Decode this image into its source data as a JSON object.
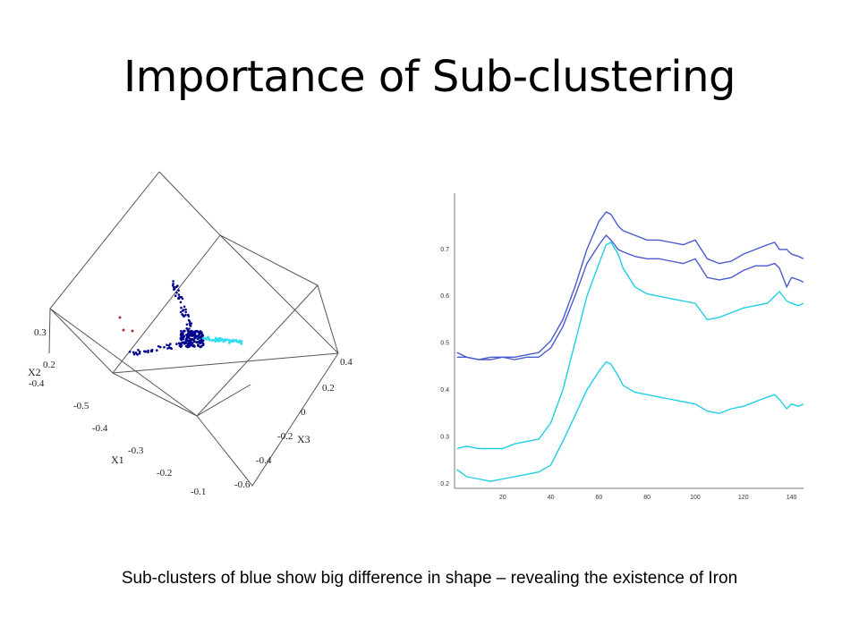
{
  "slide": {
    "title": "Importance of Sub-clustering",
    "caption": "Sub-clusters of blue show big difference in shape – revealing the existence of Iron"
  },
  "chart_data": [
    {
      "type": "scatter",
      "projection": "3d",
      "xlabel": "X1",
      "ylabel": "X2",
      "zlabel": "X3",
      "axes": {
        "X1": {
          "ticks": [
            "-0.5",
            "-0.4",
            "-0.3",
            "-0.2",
            "-0.1"
          ]
        },
        "X2": {
          "ticks": [
            "0.3",
            "0.2",
            "-0.4"
          ]
        },
        "X3": {
          "ticks": [
            "0.4",
            "0.2",
            "0",
            "-0.2",
            "-0.4",
            "-0.6"
          ]
        }
      },
      "series": [
        {
          "color": "#00008b",
          "description_count": "approx 200 points"
        },
        {
          "color": "#33ddee"
        },
        {
          "color": "#b03030"
        }
      ],
      "colors": {
        "dark_blue": "#00008b",
        "cyan": "#33ddee",
        "red": "#b03030",
        "box": "#555555"
      }
    },
    {
      "type": "line",
      "xlim": [
        0,
        145
      ],
      "ylim": [
        0.19,
        0.82
      ],
      "xticks": [
        20,
        40,
        60,
        80,
        100,
        120,
        140
      ],
      "yticks": [
        0.2,
        0.3,
        0.4,
        0.5,
        0.6,
        0.7
      ],
      "series": [
        {
          "color": "#4a5bd1",
          "x": [
            1,
            5,
            10,
            15,
            20,
            25,
            30,
            35,
            40,
            45,
            50,
            55,
            60,
            63,
            65,
            68,
            70,
            75,
            80,
            85,
            90,
            95,
            100,
            105,
            110,
            115,
            120,
            125,
            130,
            133,
            135,
            138,
            140,
            143,
            145
          ],
          "y": [
            0.47,
            0.47,
            0.465,
            0.47,
            0.47,
            0.47,
            0.475,
            0.48,
            0.505,
            0.55,
            0.62,
            0.7,
            0.76,
            0.78,
            0.775,
            0.75,
            0.74,
            0.73,
            0.72,
            0.72,
            0.715,
            0.71,
            0.72,
            0.68,
            0.67,
            0.675,
            0.69,
            0.7,
            0.71,
            0.715,
            0.7,
            0.7,
            0.69,
            0.685,
            0.68
          ]
        },
        {
          "color": "#4a5bd1",
          "x": [
            1,
            5,
            10,
            15,
            20,
            25,
            30,
            35,
            40,
            45,
            50,
            55,
            60,
            63,
            65,
            68,
            70,
            75,
            80,
            85,
            90,
            95,
            100,
            105,
            110,
            115,
            120,
            125,
            130,
            133,
            135,
            138,
            140,
            143,
            145
          ],
          "y": [
            0.48,
            0.47,
            0.465,
            0.465,
            0.47,
            0.465,
            0.47,
            0.47,
            0.49,
            0.535,
            0.6,
            0.67,
            0.71,
            0.73,
            0.72,
            0.7,
            0.695,
            0.685,
            0.68,
            0.68,
            0.675,
            0.67,
            0.68,
            0.64,
            0.635,
            0.64,
            0.655,
            0.665,
            0.665,
            0.67,
            0.66,
            0.62,
            0.64,
            0.635,
            0.63
          ]
        },
        {
          "color": "#1ecfe6",
          "x": [
            1,
            5,
            10,
            15,
            20,
            25,
            30,
            35,
            40,
            45,
            50,
            55,
            60,
            63,
            65,
            68,
            70,
            75,
            80,
            85,
            90,
            95,
            100,
            105,
            110,
            115,
            120,
            125,
            130,
            133,
            135,
            138,
            140,
            143,
            145
          ],
          "y": [
            0.275,
            0.28,
            0.275,
            0.275,
            0.275,
            0.285,
            0.29,
            0.295,
            0.33,
            0.4,
            0.5,
            0.6,
            0.67,
            0.71,
            0.715,
            0.69,
            0.66,
            0.62,
            0.605,
            0.6,
            0.595,
            0.59,
            0.585,
            0.55,
            0.555,
            0.565,
            0.575,
            0.58,
            0.585,
            0.6,
            0.61,
            0.59,
            0.585,
            0.58,
            0.585
          ]
        },
        {
          "color": "#1ecfe6",
          "x": [
            1,
            5,
            10,
            15,
            20,
            25,
            30,
            35,
            40,
            45,
            50,
            55,
            60,
            63,
            65,
            68,
            70,
            75,
            80,
            85,
            90,
            95,
            100,
            105,
            110,
            115,
            120,
            125,
            130,
            133,
            135,
            138,
            140,
            143,
            145
          ],
          "y": [
            0.23,
            0.215,
            0.21,
            0.205,
            0.21,
            0.215,
            0.22,
            0.225,
            0.24,
            0.29,
            0.345,
            0.4,
            0.44,
            0.46,
            0.455,
            0.43,
            0.41,
            0.395,
            0.39,
            0.385,
            0.38,
            0.375,
            0.37,
            0.355,
            0.35,
            0.36,
            0.365,
            0.375,
            0.385,
            0.39,
            0.38,
            0.36,
            0.37,
            0.365,
            0.37
          ]
        }
      ]
    }
  ]
}
